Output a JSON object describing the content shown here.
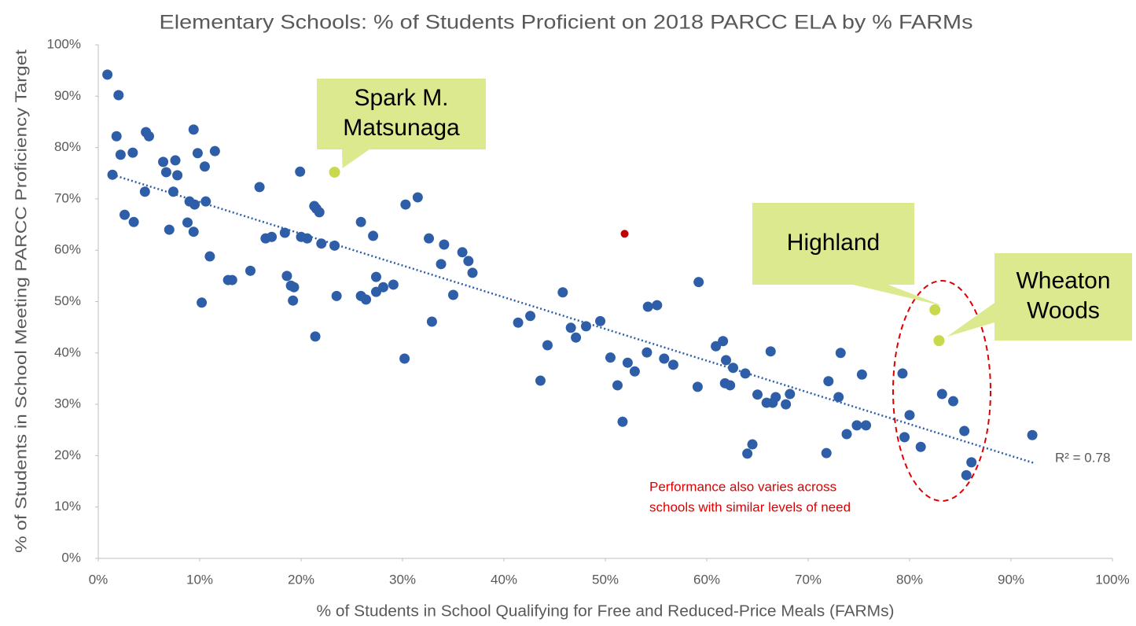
{
  "chart_data": {
    "type": "scatter",
    "title": "Elementary Schools: % of Students Proficient on 2018 PARCC ELA by % FARMs",
    "x_label": "% of Students in School Qualifying for Free and Reduced-Price Meals (FARMs)",
    "y_label": "% of Students in School Meeting PARCC Proficiency Target",
    "xlim": [
      0,
      100
    ],
    "ylim": [
      0,
      100
    ],
    "xticks": [
      {
        "value": 0,
        "label": "0%"
      },
      {
        "value": 10,
        "label": "10%"
      },
      {
        "value": 20,
        "label": "20%"
      },
      {
        "value": 30,
        "label": "30%"
      },
      {
        "value": 40,
        "label": "40%"
      },
      {
        "value": 50,
        "label": "50%"
      },
      {
        "value": 60,
        "label": "60%"
      },
      {
        "value": 70,
        "label": "70%"
      },
      {
        "value": 80,
        "label": "80%"
      },
      {
        "value": 90,
        "label": "90%"
      },
      {
        "value": 100,
        "label": "100%"
      }
    ],
    "yticks": [
      {
        "value": 0,
        "label": "0%"
      },
      {
        "value": 10,
        "label": "10%"
      },
      {
        "value": 20,
        "label": "20%"
      },
      {
        "value": 30,
        "label": "30%"
      },
      {
        "value": 40,
        "label": "40%"
      },
      {
        "value": 50,
        "label": "50%"
      },
      {
        "value": 60,
        "label": "60%"
      },
      {
        "value": 70,
        "label": "70%"
      },
      {
        "value": 80,
        "label": "80%"
      },
      {
        "value": 90,
        "label": "90%"
      },
      {
        "value": 100,
        "label": "100%"
      }
    ],
    "grid": false,
    "series": [
      {
        "color": "#2e5ea8",
        "x": [
          0.9,
          2.0,
          1.8,
          1.4,
          2.2,
          3.4,
          2.6,
          3.5,
          4.7,
          5.0,
          4.6,
          6.4,
          7.6,
          6.7,
          7.8,
          7.4,
          7.0,
          9.4,
          9.8,
          11.5,
          10.5,
          9.0,
          9.5,
          10.6,
          8.8,
          9.4,
          11.0,
          10.2,
          12.8,
          13.2,
          15.0,
          15.9,
          16.5,
          17.1,
          18.4,
          19.9,
          20.0,
          20.6,
          18.6,
          19.0,
          19.3,
          19.2,
          21.3,
          21.5,
          21.8,
          22.0,
          23.3,
          23.5,
          21.4,
          25.9,
          27.1,
          25.9,
          26.4,
          27.4,
          27.4,
          28.1,
          29.1,
          30.3,
          31.5,
          30.2,
          32.6,
          34.1,
          33.8,
          32.9,
          35.9,
          36.5,
          36.9,
          35.0,
          41.4,
          42.6,
          43.6,
          44.3,
          45.8,
          46.6,
          47.1,
          48.1,
          49.5,
          50.5,
          51.2,
          51.7,
          52.2,
          52.9,
          54.2,
          55.1,
          54.1,
          55.8,
          56.7,
          59.1,
          59.2,
          60.9,
          61.6,
          61.9,
          61.8,
          62.3,
          62.6,
          63.8,
          64.0,
          64.5,
          65.0,
          65.9,
          66.3,
          66.5,
          66.8,
          67.8,
          68.2,
          71.8,
          72.0,
          73.0,
          73.2,
          73.8,
          74.8,
          75.7,
          75.3,
          79.3,
          79.5,
          80.0,
          81.1,
          83.2,
          84.3,
          85.4,
          86.1,
          85.6,
          92.1
        ],
        "values": [
          94.2,
          90.2,
          82.2,
          74.7,
          78.6,
          79.0,
          66.9,
          65.5,
          83.0,
          82.2,
          71.4,
          77.2,
          77.5,
          75.2,
          74.6,
          71.4,
          64.0,
          83.5,
          78.9,
          79.3,
          76.3,
          69.5,
          68.9,
          69.5,
          65.4,
          63.6,
          58.8,
          49.8,
          54.2,
          54.2,
          56.0,
          72.3,
          62.3,
          62.6,
          63.4,
          75.3,
          62.6,
          62.3,
          55.0,
          53.1,
          52.8,
          50.2,
          68.6,
          68.1,
          67.4,
          61.3,
          60.9,
          51.1,
          43.2,
          65.5,
          62.8,
          51.1,
          50.4,
          54.8,
          51.9,
          52.8,
          53.3,
          68.9,
          70.3,
          38.9,
          62.3,
          61.1,
          57.3,
          46.1,
          59.6,
          57.9,
          55.6,
          51.3,
          45.9,
          47.2,
          34.6,
          41.5,
          51.8,
          44.9,
          43.0,
          45.2,
          46.2,
          39.1,
          33.7,
          26.6,
          38.1,
          36.4,
          49.0,
          49.3,
          40.1,
          38.9,
          37.7,
          33.4,
          53.8,
          41.3,
          42.3,
          38.6,
          34.1,
          33.7,
          37.1,
          36.0,
          20.4,
          22.2,
          31.9,
          30.3,
          40.3,
          30.3,
          31.4,
          30.0,
          32.0,
          20.5,
          34.5,
          31.4,
          40.0,
          24.2,
          25.9,
          25.9,
          35.8,
          36.0,
          23.6,
          27.9,
          21.7,
          32.0,
          30.6,
          24.8,
          18.7,
          16.2,
          24.0
        ]
      },
      {
        "color": "#c00000",
        "x": [
          51.9
        ],
        "values": [
          63.2
        ]
      }
    ],
    "highlights": [
      {
        "label": [
          "Spark M.",
          "Matsunaga"
        ],
        "x": 23.3,
        "y": 75.2
      },
      {
        "label": [
          "Highland"
        ],
        "x": 82.5,
        "y": 48.4
      },
      {
        "label": [
          "Wheaton",
          "Woods"
        ],
        "x": 82.9,
        "y": 42.4
      }
    ],
    "highlight_color": "#c8d94e",
    "callout_color": "#dde98f",
    "trendline": {
      "x": [
        1.4,
        92.2
      ],
      "values": [
        74.7,
        18.6
      ],
      "color": "#2e5ea8",
      "label": "R² = 0.78"
    },
    "note": [
      "Performance also varies across",
      "schools with similar levels of need"
    ]
  }
}
